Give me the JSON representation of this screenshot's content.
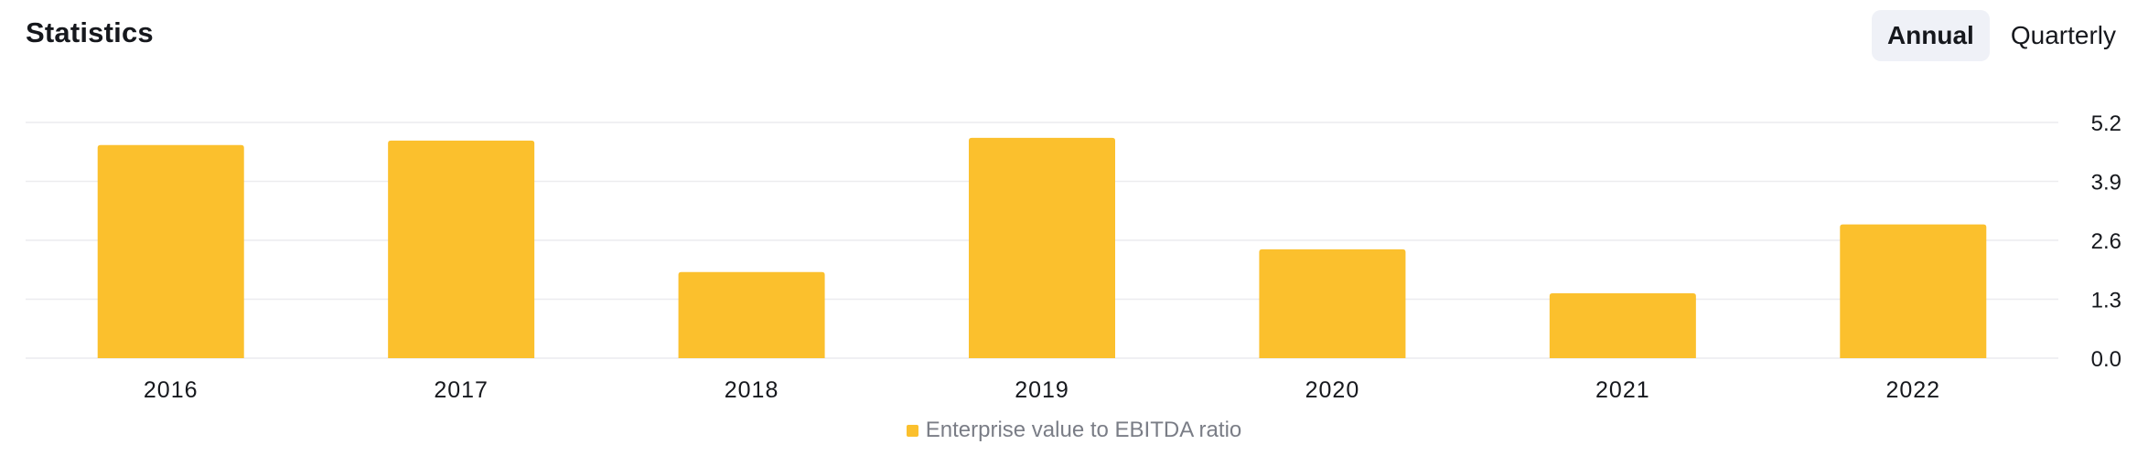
{
  "header": {
    "title": "Statistics"
  },
  "period_toggle": {
    "options": [
      {
        "label": "Annual",
        "active": true
      },
      {
        "label": "Quarterly",
        "active": false
      }
    ]
  },
  "colors": {
    "bar": "#fbc02d",
    "grid": "#ececef",
    "legend_text": "#7a7d86"
  },
  "chart_data": {
    "type": "bar",
    "categories": [
      "2016",
      "2017",
      "2018",
      "2019",
      "2020",
      "2021",
      "2022"
    ],
    "series": [
      {
        "name": "Enterprise value to EBITDA ratio",
        "values": [
          4.7,
          4.8,
          1.9,
          4.86,
          2.4,
          1.43,
          2.95
        ]
      }
    ],
    "ylim": [
      0,
      5.2
    ],
    "yticks": [
      "0.0",
      "1.3",
      "2.6",
      "3.9",
      "5.2"
    ],
    "y_axis_position": "right",
    "grid": true,
    "legend": "bottom-center"
  }
}
